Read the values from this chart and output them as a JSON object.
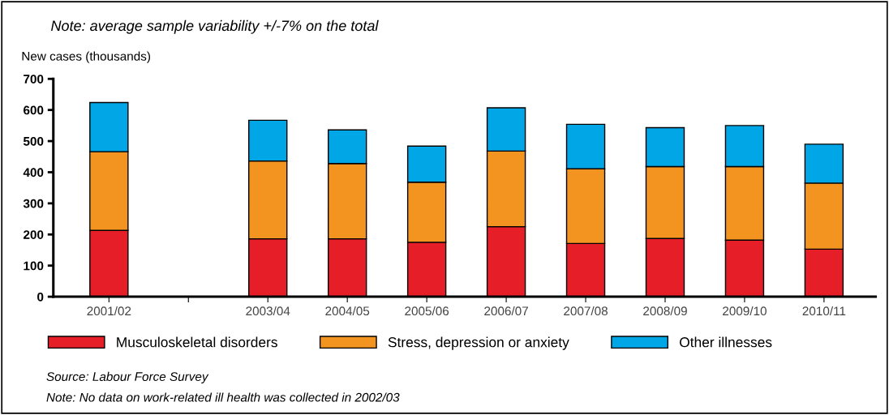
{
  "chart_data": {
    "type": "bar",
    "stacked": true,
    "title": "Note: average sample variability +/-7% on the total",
    "ylabel": "New cases (thousands)",
    "categories": [
      "2001/02",
      null,
      "2003/04",
      "2004/05",
      "2005/06",
      "2006/07",
      "2007/08",
      "2008/09",
      "2009/10",
      "2010/11"
    ],
    "series": [
      {
        "name": "Musculoskeletal disorders",
        "color": "#e61e28",
        "values": [
          213,
          null,
          186,
          186,
          175,
          225,
          171,
          187,
          182,
          153
        ]
      },
      {
        "name": "Stress, depression or anxiety",
        "color": "#f39320",
        "values": [
          253,
          null,
          250,
          242,
          193,
          243,
          240,
          231,
          236,
          212
        ]
      },
      {
        "name": "Other illnesses",
        "color": "#00a6e6",
        "values": [
          158,
          null,
          131,
          108,
          116,
          139,
          143,
          125,
          132,
          125
        ]
      }
    ],
    "ylim": [
      0,
      700
    ],
    "yticks": [
      0,
      100,
      200,
      300,
      400,
      500,
      600,
      700
    ],
    "grid": false,
    "legend": "bottom",
    "annotations": [
      "Source: Labour Force Survey",
      "Note: No data on work-related ill health was collected in 2002/03"
    ]
  }
}
